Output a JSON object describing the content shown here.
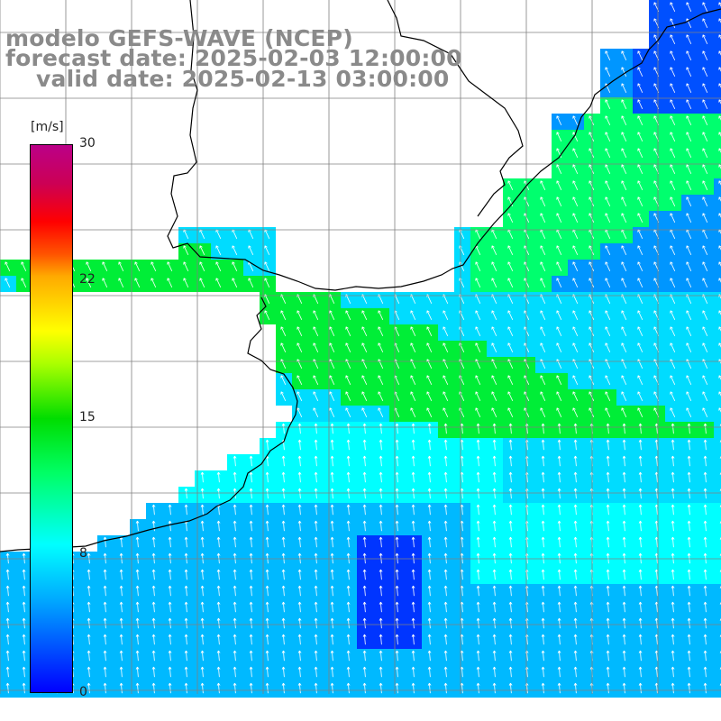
{
  "title": {
    "line1": "modelo GEFS-WAVE (NCEP)",
    "line2": "forecast date: 2025-02-03 12:00:00",
    "line3": "valid date: 2025-02-13 03:00:00"
  },
  "colorbar": {
    "unit": "[m/s]",
    "ticks": [
      "30",
      "22",
      "15",
      "8",
      "0"
    ]
  },
  "field": {
    "variable": "wind speed (colored) with direction arrows",
    "range": [
      0,
      30
    ],
    "regions": {
      "strong_band": "green, ~10-12 m/s, offshore band running northwest-southeast",
      "weak_core": "deep blue, ~1-3 m/s, south-central",
      "coastal_north": "blue/cyan along northern coast"
    },
    "arrow_direction": "mostly toward north-northwest"
  },
  "colors": {
    "land": "#ffffff",
    "coast": "#000000",
    "grid": "#808080",
    "title": "#8a8a8a",
    "arrows": "#ffffff"
  }
}
